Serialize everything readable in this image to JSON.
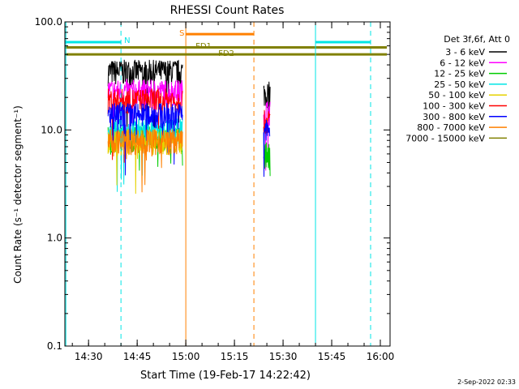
{
  "chart_data": {
    "type": "line",
    "title": "RHESSI Count Rates",
    "xlabel": "Start Time (19-Feb-17 14:22:42)",
    "ylabel": "Count Rate (s⁻¹ detector segment⁻¹)",
    "y_scale": "log",
    "ylim": [
      0.1,
      100.0
    ],
    "y_ticks": [
      "0.1",
      "1.0",
      "10.0",
      "100.0"
    ],
    "x_ticks": [
      "14:30",
      "14:45",
      "15:00",
      "15:15",
      "15:30",
      "15:45",
      "16:00"
    ],
    "xlim": [
      "14:22:42",
      "16:03"
    ],
    "footer_date": "2-Sep-2022 02:33",
    "legend_title": "Det 3f,6f, Att 0",
    "legend_position": "right, outside plot",
    "series": [
      {
        "name": "3 - 6 keV",
        "color": "#000000",
        "segments": [
          {
            "x": [
              "14:36",
              "14:59"
            ],
            "level": 35
          },
          {
            "x": [
              "15:24",
              "15:26"
            ],
            "level": 22
          }
        ]
      },
      {
        "name": "6 - 12 keV",
        "color": "#ff00ff",
        "segments": [
          {
            "x": [
              "14:36",
              "14:59"
            ],
            "level": 23
          },
          {
            "x": [
              "15:24",
              "15:26"
            ],
            "level": 15
          }
        ]
      },
      {
        "name": "12 - 25 keV",
        "color": "#00cc00",
        "segments": [
          {
            "x": [
              "14:36",
              "14:59"
            ],
            "level": 8.5
          },
          {
            "x": [
              "15:24",
              "15:26"
            ],
            "level": 6
          }
        ]
      },
      {
        "name": "25 - 50 keV",
        "color": "#00e5e5",
        "segments": [
          {
            "x": [
              "14:36",
              "14:59"
            ],
            "level": 10
          }
        ]
      },
      {
        "name": "50 - 100 keV",
        "color": "#e6d200",
        "segments": [
          {
            "x": [
              "14:36",
              "14:59"
            ],
            "level": 8
          }
        ]
      },
      {
        "name": "100 - 300 keV",
        "color": "#ff0000",
        "segments": [
          {
            "x": [
              "14:36",
              "14:59"
            ],
            "level": 19
          },
          {
            "x": [
              "15:24",
              "15:26"
            ],
            "level": 12
          }
        ]
      },
      {
        "name": "300 - 800 keV",
        "color": "#0000ff",
        "segments": [
          {
            "x": [
              "14:36",
              "14:59"
            ],
            "level": 14
          },
          {
            "x": [
              "15:24",
              "15:26"
            ],
            "level": 10
          }
        ]
      },
      {
        "name": "800 - 7000 keV",
        "color": "#ff8000",
        "segments": [
          {
            "x": [
              "14:36",
              "14:59"
            ],
            "level": 8
          }
        ]
      },
      {
        "name": "7000 - 15000 keV",
        "color": "#808000",
        "segments": []
      }
    ],
    "annotations": [
      {
        "label": "N",
        "color": "#00e5e5",
        "bar_x": [
          "14:22:42",
          "14:40"
        ],
        "bar_y": 65,
        "vlines": [
          {
            "x": "14:40",
            "style": "dashed"
          }
        ]
      },
      {
        "label": "S",
        "color": "#ff8000",
        "bar_x": [
          "15:00",
          "15:21"
        ],
        "bar_y": 77,
        "vlines": [
          {
            "x": "15:00",
            "style": "solid"
          },
          {
            "x": "15:21",
            "style": "dashed"
          }
        ]
      },
      {
        "label": "FD1",
        "color": "#808000",
        "bar_x": [
          "14:22:42",
          "16:02"
        ],
        "bar_y": 58
      },
      {
        "label": "FD2",
        "color": "#808000",
        "bar_x": [
          "14:22:42",
          "16:02"
        ],
        "bar_y": 50
      },
      {
        "label": "",
        "color": "#00e5e5",
        "bar_x": [
          "15:40",
          "15:57"
        ],
        "bar_y": 65,
        "vlines": [
          {
            "x": "14:23",
            "style": "solid"
          },
          {
            "x": "15:40",
            "style": "solid"
          },
          {
            "x": "15:57",
            "style": "dashed"
          }
        ]
      }
    ]
  }
}
